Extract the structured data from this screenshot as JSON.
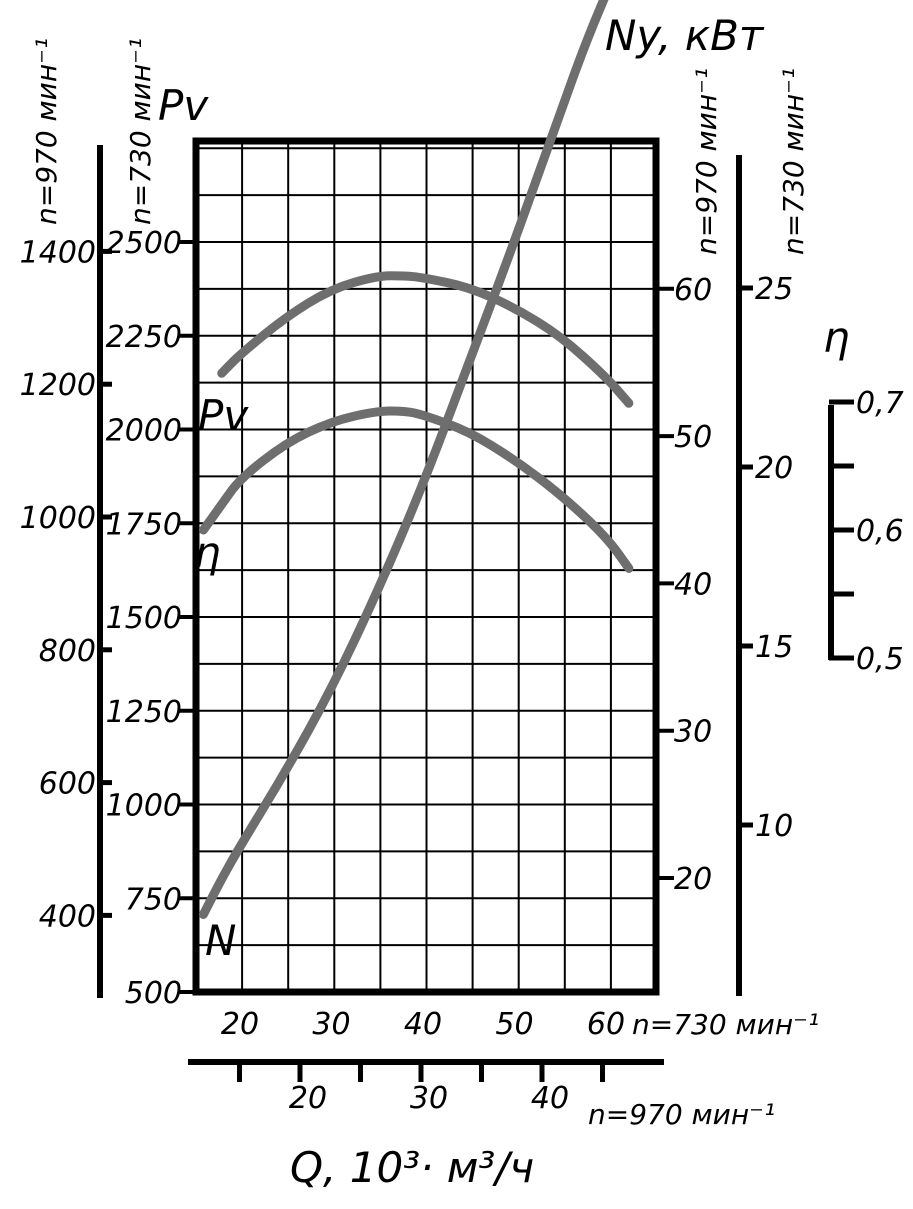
{
  "chart_data": {
    "type": "line",
    "ylabel_pressure": "Pv",
    "ylabel_power": "Ny, кВт",
    "ylabel_efficiency": "η",
    "xlabel": "Q, 10³· м³/ч",
    "left_axes": [
      {
        "speed_label": "n=970 мин⁻¹",
        "ticks": [
          "1400",
          "1200",
          "1000",
          "800",
          "600",
          "400"
        ],
        "values": [
          1400,
          1200,
          1000,
          800,
          600,
          400
        ]
      },
      {
        "speed_label": "n=730 мин⁻¹",
        "ticks": [
          "2500",
          "2250",
          "2000",
          "1750",
          "1500",
          "1250",
          "1000",
          "750",
          "500"
        ],
        "values": [
          2500,
          2250,
          2000,
          1750,
          1500,
          1250,
          1000,
          750,
          500
        ]
      }
    ],
    "right_axes": [
      {
        "speed_label": "n=970 мин⁻¹",
        "ticks": [
          "60",
          "50",
          "40",
          "30",
          "20"
        ],
        "values": [
          60,
          50,
          40,
          30,
          20
        ]
      },
      {
        "speed_label": "n=730 мин⁻¹",
        "ticks": [
          "25",
          "20",
          "15",
          "10"
        ],
        "values": [
          25,
          20,
          15,
          10
        ]
      },
      {
        "ticks": [
          "0,7",
          "0,6",
          "0,5"
        ],
        "values": [
          0.7,
          0.6,
          0.5
        ]
      }
    ],
    "x_axes": [
      {
        "speed_label": "n=730 мин⁻¹",
        "ticks": [
          "20",
          "30",
          "40",
          "50",
          "60"
        ],
        "values": [
          20,
          30,
          40,
          50,
          60
        ]
      },
      {
        "speed_label": "n=970 мин⁻¹",
        "ticks": [
          "20",
          "30",
          "40"
        ],
        "values": [
          20,
          30,
          40
        ]
      }
    ],
    "ylim_pressure_730": [
      500,
      2750
    ],
    "xlim_730": [
      15,
      65
    ],
    "grid": true,
    "series": [
      {
        "name": "Pv",
        "x": [
          18,
          20,
          25,
          30,
          35,
          38,
          40,
          45,
          50,
          55,
          60,
          62.5
        ],
        "y": [
          2150,
          2200,
          2300,
          2375,
          2410,
          2410,
          2405,
          2380,
          2325,
          2250,
          2140,
          2070
        ]
      },
      {
        "name": "η",
        "x": [
          16,
          18,
          20,
          25,
          30,
          35,
          38,
          40,
          45,
          50,
          55,
          60,
          62.5
        ],
        "y": [
          0.6,
          0.62,
          0.64,
          0.668,
          0.685,
          0.693,
          0.693,
          0.69,
          0.677,
          0.655,
          0.628,
          0.595,
          0.57
        ]
      },
      {
        "name": "N",
        "x": [
          16,
          18,
          20,
          25,
          30,
          35,
          40,
          45,
          50,
          55,
          58,
          61
        ],
        "y": [
          7.5,
          8.5,
          9.4,
          11.5,
          13.8,
          16.5,
          19.5,
          22.9,
          26.3,
          29.9,
          32,
          33.8
        ]
      }
    ]
  }
}
